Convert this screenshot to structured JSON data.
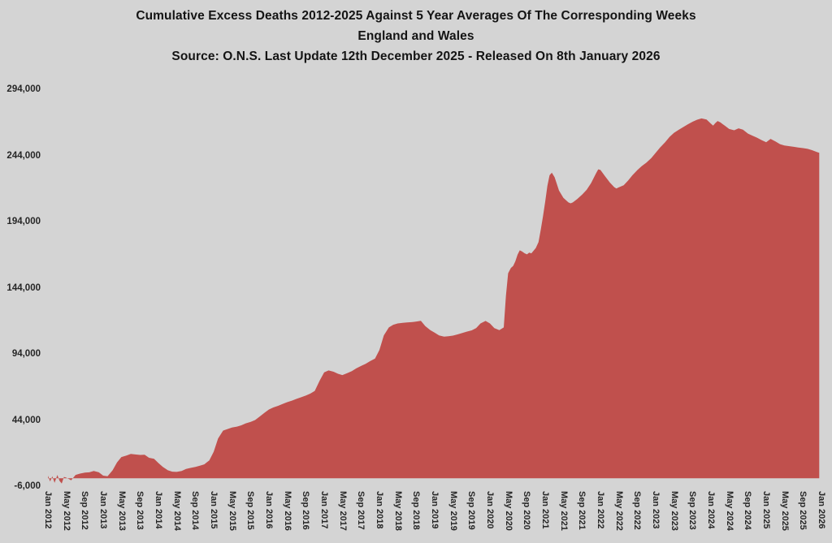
{
  "title": {
    "line1": "Cumulative Excess Deaths 2012-2025 Against 5 Year Averages Of The Corresponding Weeks",
    "line2": "England and Wales",
    "line3": "Source: O.N.S. Last Update 12th December 2025 - Released On 8th January 2026"
  },
  "colors": {
    "background": "#d4d4d4",
    "area_fill": "#c0504d",
    "text": "#141414",
    "axis_text": "#262626"
  },
  "chart_data": {
    "type": "area",
    "title": "Cumulative Excess Deaths 2012-2025 Against 5 Year Averages Of The Corresponding Weeks",
    "subtitle": "England and Wales",
    "source_note": "Source: O.N.S. Last Update 12th December 2025 - Released On 8th January 2026",
    "xlabel": "",
    "ylabel": "",
    "grid": false,
    "legend": false,
    "ylim": [
      -6000,
      294000
    ],
    "xlim_years": [
      2012.0,
      2026.0
    ],
    "y_ticks": [
      {
        "value": 294000,
        "label": "294,000"
      },
      {
        "value": 244000,
        "label": "244,000"
      },
      {
        "value": 194000,
        "label": "194,000"
      },
      {
        "value": 144000,
        "label": "144,000"
      },
      {
        "value": 94000,
        "label": "94,000"
      },
      {
        "value": 44000,
        "label": "44,000"
      },
      {
        "value": -6000,
        "label": "-6,000"
      }
    ],
    "x_tick_labels": [
      "Jan 2012",
      "May 2012",
      "Sep 2012",
      "Jan 2013",
      "May 2013",
      "Sep 2013",
      "Jan 2014",
      "May 2014",
      "Sep 2014",
      "Jan 2015",
      "May 2015",
      "Sep 2015",
      "Jan 2016",
      "May 2016",
      "Sep 2016",
      "Jan 2017",
      "May 2017",
      "Sep 2017",
      "Jan 2018",
      "May 2018",
      "Sep 2018",
      "Jan 2019",
      "May 2019",
      "Sep 2019",
      "Jan 2020",
      "May 2020",
      "Sep 2020",
      "Jan 2021",
      "May 2021",
      "Sep 2021",
      "Jan 2022",
      "May 2022",
      "Sep 2022",
      "Jan 2023",
      "May 2023",
      "Sep 2023",
      "Jan 2024",
      "May 2024",
      "Sep 2024",
      "Jan 2025",
      "May 2025",
      "Sep 2025",
      "Jan 2026"
    ],
    "series": [
      {
        "name": "Cumulative excess deaths (England and Wales)",
        "fill_color": "#c0504d",
        "points": [
          [
            2012.0,
            2000
          ],
          [
            2012.04,
            -2500
          ],
          [
            2012.08,
            1500
          ],
          [
            2012.12,
            -3500
          ],
          [
            2012.17,
            2500
          ],
          [
            2012.21,
            -2000
          ],
          [
            2012.25,
            -4000
          ],
          [
            2012.29,
            1000
          ],
          [
            2012.33,
            500
          ],
          [
            2012.42,
            -1500
          ],
          [
            2012.5,
            2500
          ],
          [
            2012.58,
            3500
          ],
          [
            2012.67,
            4300
          ],
          [
            2012.75,
            4500
          ],
          [
            2012.83,
            5500
          ],
          [
            2012.92,
            4500
          ],
          [
            2013.0,
            2000
          ],
          [
            2013.08,
            1500
          ],
          [
            2013.17,
            6000
          ],
          [
            2013.25,
            12000
          ],
          [
            2013.33,
            16000
          ],
          [
            2013.42,
            17200
          ],
          [
            2013.5,
            18400
          ],
          [
            2013.58,
            18000
          ],
          [
            2013.67,
            17600
          ],
          [
            2013.75,
            17800
          ],
          [
            2013.83,
            15500
          ],
          [
            2013.92,
            14700
          ],
          [
            2014.0,
            11500
          ],
          [
            2014.08,
            8600
          ],
          [
            2014.17,
            6000
          ],
          [
            2014.25,
            5000
          ],
          [
            2014.33,
            4800
          ],
          [
            2014.42,
            5500
          ],
          [
            2014.5,
            7000
          ],
          [
            2014.58,
            7800
          ],
          [
            2014.67,
            8600
          ],
          [
            2014.75,
            9500
          ],
          [
            2014.83,
            10500
          ],
          [
            2014.92,
            13500
          ],
          [
            2015.0,
            20000
          ],
          [
            2015.08,
            30000
          ],
          [
            2015.17,
            36000
          ],
          [
            2015.25,
            37200
          ],
          [
            2015.33,
            38300
          ],
          [
            2015.42,
            39000
          ],
          [
            2015.5,
            40000
          ],
          [
            2015.58,
            41500
          ],
          [
            2015.67,
            42600
          ],
          [
            2015.75,
            44000
          ],
          [
            2015.83,
            46500
          ],
          [
            2015.92,
            49500
          ],
          [
            2016.0,
            52000
          ],
          [
            2016.08,
            53500
          ],
          [
            2016.17,
            54800
          ],
          [
            2016.25,
            56200
          ],
          [
            2016.33,
            57500
          ],
          [
            2016.42,
            58700
          ],
          [
            2016.5,
            60000
          ],
          [
            2016.58,
            61200
          ],
          [
            2016.67,
            62500
          ],
          [
            2016.75,
            64000
          ],
          [
            2016.83,
            66000
          ],
          [
            2016.92,
            74000
          ],
          [
            2017.0,
            80000
          ],
          [
            2017.08,
            81500
          ],
          [
            2017.17,
            80500
          ],
          [
            2017.25,
            79000
          ],
          [
            2017.33,
            78000
          ],
          [
            2017.42,
            79500
          ],
          [
            2017.5,
            81000
          ],
          [
            2017.58,
            83000
          ],
          [
            2017.67,
            85000
          ],
          [
            2017.75,
            86500
          ],
          [
            2017.83,
            88500
          ],
          [
            2017.92,
            90500
          ],
          [
            2018.0,
            97000
          ],
          [
            2018.08,
            108000
          ],
          [
            2018.17,
            114000
          ],
          [
            2018.25,
            116000
          ],
          [
            2018.33,
            117000
          ],
          [
            2018.42,
            117500
          ],
          [
            2018.5,
            117800
          ],
          [
            2018.58,
            118000
          ],
          [
            2018.67,
            118500
          ],
          [
            2018.75,
            119000
          ],
          [
            2018.83,
            115000
          ],
          [
            2018.92,
            112000
          ],
          [
            2019.0,
            110000
          ],
          [
            2019.08,
            108000
          ],
          [
            2019.17,
            107000
          ],
          [
            2019.25,
            107300
          ],
          [
            2019.33,
            107800
          ],
          [
            2019.42,
            108800
          ],
          [
            2019.5,
            109800
          ],
          [
            2019.58,
            110800
          ],
          [
            2019.67,
            111800
          ],
          [
            2019.75,
            113500
          ],
          [
            2019.83,
            117000
          ],
          [
            2019.92,
            118900
          ],
          [
            2020.0,
            117000
          ],
          [
            2020.08,
            113500
          ],
          [
            2020.17,
            112000
          ],
          [
            2020.25,
            114000
          ],
          [
            2020.29,
            138000
          ],
          [
            2020.33,
            155000
          ],
          [
            2020.38,
            159000
          ],
          [
            2020.42,
            160500
          ],
          [
            2020.46,
            164000
          ],
          [
            2020.5,
            169000
          ],
          [
            2020.54,
            172300
          ],
          [
            2020.58,
            171500
          ],
          [
            2020.63,
            170000
          ],
          [
            2020.67,
            169200
          ],
          [
            2020.71,
            170500
          ],
          [
            2020.75,
            170000
          ],
          [
            2020.83,
            174000
          ],
          [
            2020.88,
            178500
          ],
          [
            2020.92,
            188000
          ],
          [
            2020.96,
            198000
          ],
          [
            2021.0,
            209000
          ],
          [
            2021.04,
            221000
          ],
          [
            2021.08,
            229000
          ],
          [
            2021.12,
            231000
          ],
          [
            2021.17,
            227500
          ],
          [
            2021.21,
            222500
          ],
          [
            2021.25,
            217500
          ],
          [
            2021.33,
            212000
          ],
          [
            2021.42,
            208500
          ],
          [
            2021.46,
            207800
          ],
          [
            2021.5,
            208500
          ],
          [
            2021.58,
            211000
          ],
          [
            2021.67,
            214500
          ],
          [
            2021.75,
            218000
          ],
          [
            2021.83,
            223000
          ],
          [
            2021.92,
            230500
          ],
          [
            2021.96,
            233500
          ],
          [
            2022.0,
            233000
          ],
          [
            2022.08,
            228500
          ],
          [
            2022.17,
            223500
          ],
          [
            2022.25,
            220000
          ],
          [
            2022.29,
            219000
          ],
          [
            2022.33,
            219800
          ],
          [
            2022.42,
            221500
          ],
          [
            2022.5,
            225000
          ],
          [
            2022.58,
            229000
          ],
          [
            2022.67,
            233000
          ],
          [
            2022.75,
            236000
          ],
          [
            2022.83,
            238500
          ],
          [
            2022.92,
            242000
          ],
          [
            2023.0,
            246000
          ],
          [
            2023.08,
            250000
          ],
          [
            2023.17,
            254000
          ],
          [
            2023.25,
            258000
          ],
          [
            2023.33,
            261000
          ],
          [
            2023.42,
            263500
          ],
          [
            2023.5,
            265500
          ],
          [
            2023.58,
            267500
          ],
          [
            2023.67,
            269500
          ],
          [
            2023.75,
            271000
          ],
          [
            2023.83,
            272000
          ],
          [
            2023.92,
            271200
          ],
          [
            2024.0,
            268000
          ],
          [
            2024.04,
            266500
          ],
          [
            2024.08,
            268500
          ],
          [
            2024.12,
            270000
          ],
          [
            2024.17,
            269000
          ],
          [
            2024.25,
            266500
          ],
          [
            2024.33,
            264000
          ],
          [
            2024.42,
            263000
          ],
          [
            2024.5,
            264500
          ],
          [
            2024.58,
            263500
          ],
          [
            2024.67,
            260500
          ],
          [
            2024.75,
            259000
          ],
          [
            2024.83,
            257500
          ],
          [
            2024.92,
            255500
          ],
          [
            2025.0,
            254000
          ],
          [
            2025.08,
            256500
          ],
          [
            2025.17,
            254500
          ],
          [
            2025.25,
            252500
          ],
          [
            2025.33,
            251500
          ],
          [
            2025.42,
            251000
          ],
          [
            2025.5,
            250500
          ],
          [
            2025.58,
            250000
          ],
          [
            2025.67,
            249500
          ],
          [
            2025.75,
            249000
          ],
          [
            2025.83,
            248000
          ],
          [
            2025.92,
            246500
          ],
          [
            2025.96,
            246000
          ]
        ]
      }
    ]
  }
}
